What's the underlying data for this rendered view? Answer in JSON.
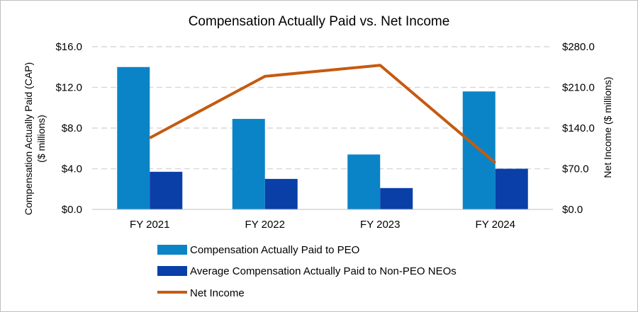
{
  "chart_data": {
    "type": "bar",
    "title": "Compensation  Actually  Paid vs. Net Income",
    "categories": [
      "FY 2021",
      "FY 2022",
      "FY 2023",
      "FY 2024"
    ],
    "series": [
      {
        "name": "Compensation Actually Paid to PEO",
        "type": "bar",
        "axis": "left",
        "color": "#0a84c6",
        "values": [
          14.0,
          8.9,
          5.4,
          11.6
        ]
      },
      {
        "name": "Average Compensation Actually Paid to Non-PEO NEOs",
        "type": "bar",
        "axis": "left",
        "color": "#0a3fa8",
        "values": [
          3.7,
          3.0,
          2.1,
          4.0
        ]
      },
      {
        "name": "Net Income",
        "type": "line",
        "axis": "right",
        "color": "#c55a11",
        "values": [
          123,
          229,
          248,
          80
        ]
      }
    ],
    "left_axis": {
      "label_line1": "Compensation  Actually Paid (CAP)",
      "label_line2": "($ millions)",
      "ticks": [
        "$0.0",
        "$4.0",
        "$8.0",
        "$12.0",
        "$16.0"
      ],
      "ylim": [
        0,
        16
      ]
    },
    "right_axis": {
      "label": "Net Income ($ millions)",
      "ticks": [
        "$0.0",
        "$70.0",
        "$140.0",
        "$210.0",
        "$280.0"
      ],
      "ylim": [
        0,
        280
      ]
    },
    "grid": true,
    "legend_position": "bottom"
  }
}
